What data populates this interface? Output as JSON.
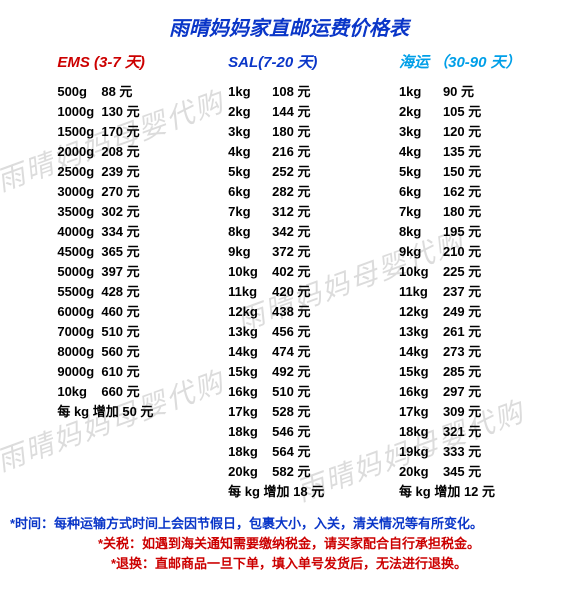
{
  "title": "雨晴妈妈家直邮运费价格表",
  "title_color": "#0a36c8",
  "watermark_text": "雨晴妈妈母婴代购",
  "columns": [
    {
      "header": "EMS (3-7 天)",
      "header_color": "#cc0000",
      "unit": "元",
      "rows": [
        {
          "w": "500g",
          "p": "88"
        },
        {
          "w": "1000g",
          "p": "130"
        },
        {
          "w": "1500g",
          "p": "170"
        },
        {
          "w": "2000g",
          "p": "208"
        },
        {
          "w": "2500g",
          "p": "239"
        },
        {
          "w": "3000g",
          "p": "270"
        },
        {
          "w": "3500g",
          "p": "302"
        },
        {
          "w": "4000g",
          "p": "334"
        },
        {
          "w": "4500g",
          "p": "365"
        },
        {
          "w": "5000g",
          "p": "397"
        },
        {
          "w": "5500g",
          "p": "428"
        },
        {
          "w": "6000g",
          "p": "460"
        },
        {
          "w": "7000g",
          "p": "510"
        },
        {
          "w": "8000g",
          "p": "560"
        },
        {
          "w": "9000g",
          "p": "610"
        },
        {
          "w": "10kg",
          "p": "660"
        }
      ],
      "extra": "每 kg 增加 50 元"
    },
    {
      "header": "SAL(7-20 天)",
      "header_color": "#0a36c8",
      "unit": "元",
      "rows": [
        {
          "w": "1kg",
          "p": "108"
        },
        {
          "w": "2kg",
          "p": "144"
        },
        {
          "w": "3kg",
          "p": "180"
        },
        {
          "w": "4kg",
          "p": "216"
        },
        {
          "w": "5kg",
          "p": "252"
        },
        {
          "w": "6kg",
          "p": "282"
        },
        {
          "w": "7kg",
          "p": "312"
        },
        {
          "w": "8kg",
          "p": "342"
        },
        {
          "w": "9kg",
          "p": "372"
        },
        {
          "w": "10kg",
          "p": "402"
        },
        {
          "w": "11kg",
          "p": "420"
        },
        {
          "w": "12kg",
          "p": "438"
        },
        {
          "w": "13kg",
          "p": "456"
        },
        {
          "w": "14kg",
          "p": "474"
        },
        {
          "w": "15kg",
          "p": "492"
        },
        {
          "w": "16kg",
          "p": "510"
        },
        {
          "w": "17kg",
          "p": "528"
        },
        {
          "w": "18kg",
          "p": "546"
        },
        {
          "w": "18kg",
          "p": "564"
        },
        {
          "w": "20kg",
          "p": "582"
        }
      ],
      "extra": "每 kg 增加 18 元"
    },
    {
      "header": "海运 （30-90 天）",
      "header_color": "#009fe8",
      "unit": "元",
      "rows": [
        {
          "w": "1kg",
          "p": "90"
        },
        {
          "w": "2kg",
          "p": "105"
        },
        {
          "w": "3kg",
          "p": "120"
        },
        {
          "w": "4kg",
          "p": "135"
        },
        {
          "w": "5kg",
          "p": "150"
        },
        {
          "w": "6kg",
          "p": "162"
        },
        {
          "w": "7kg",
          "p": "180"
        },
        {
          "w": "8kg",
          "p": "195"
        },
        {
          "w": "9kg",
          "p": "210"
        },
        {
          "w": "10kg",
          "p": "225"
        },
        {
          "w": "11kg",
          "p": "237"
        },
        {
          "w": "12kg",
          "p": "249"
        },
        {
          "w": "13kg",
          "p": "261"
        },
        {
          "w": "14kg",
          "p": "273"
        },
        {
          "w": "15kg",
          "p": "285"
        },
        {
          "w": "16kg",
          "p": "297"
        },
        {
          "w": "17kg",
          "p": "309"
        },
        {
          "w": "18kg",
          "p": "321"
        },
        {
          "w": "19kg",
          "p": "333"
        },
        {
          "w": "20kg",
          "p": "345"
        }
      ],
      "extra": "每 kg 增加 12 元"
    }
  ],
  "footer": {
    "time_note": "*时间：每种运输方式时间上会因节假日，包裹大小，入关，清关情况等有所变化。",
    "tax_note": "*关税：如遇到海关通知需要缴纳税金，请买家配合自行承担税金。",
    "return_note": "*退换：直邮商品一旦下单，填入单号发货后，无法进行退换。"
  }
}
